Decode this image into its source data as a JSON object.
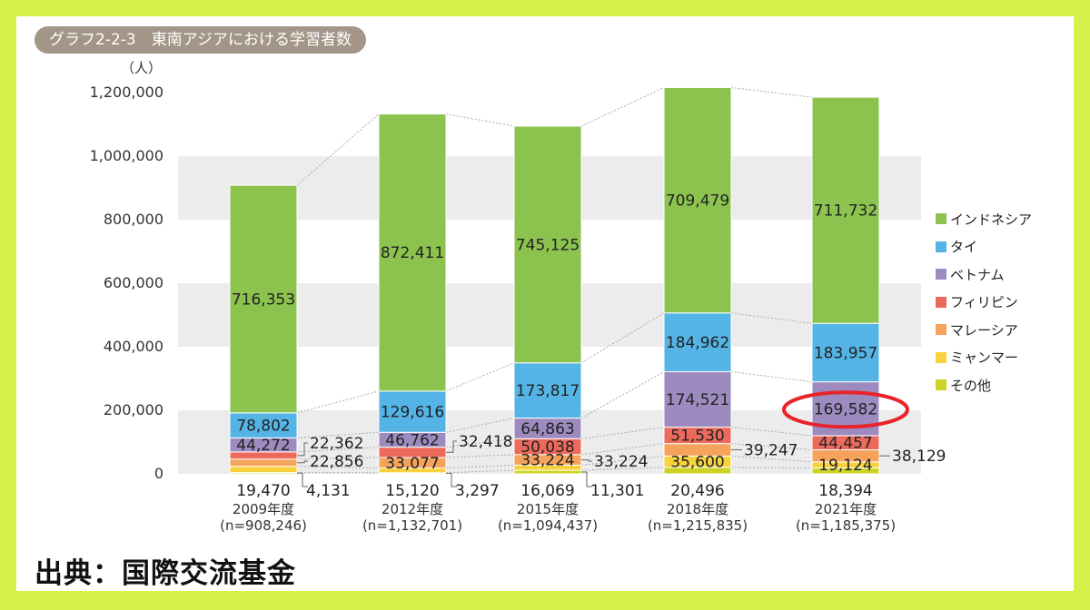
{
  "header": {
    "title": "グラフ2-2-3　東南アジアにおける学習者数"
  },
  "footer": {
    "source": "出典：国際交流基金"
  },
  "colors": {
    "background": "#d8f04a",
    "インドネシア": "#8cc34f",
    "タイ": "#54b4e6",
    "ベトナム": "#9d8bc0",
    "フィリピン": "#ec6a5c",
    "マレーシア": "#f5a35c",
    "ミャンマー": "#f8d23c",
    "その他": "#cbd424",
    "highlight": "#e8242a"
  },
  "chart_data": {
    "type": "bar",
    "stacked": true,
    "ylabel": "（人）",
    "ylim": [
      0,
      1200000
    ],
    "yticks": [
      "0",
      "200,000",
      "400,000",
      "600,000",
      "800,000",
      "1,000,000",
      "1,200,000"
    ],
    "grid": true,
    "legend_position": "right",
    "categories": [
      {
        "year": "2009年度",
        "total": "(n=908,246)"
      },
      {
        "year": "2012年度",
        "total": "(n=1,132,701)"
      },
      {
        "year": "2015年度",
        "total": "(n=1,094,437)"
      },
      {
        "year": "2018年度",
        "total": "(n=1,215,835)"
      },
      {
        "year": "2021年度",
        "total": "(n=1,185,375)"
      }
    ],
    "series": [
      {
        "name": "その他",
        "values": [
          4131,
          3297,
          11301,
          20496,
          18394
        ],
        "labels": [
          "4,131",
          "3,297",
          "11,301",
          "20,496",
          "18,394"
        ]
      },
      {
        "name": "ミャンマー",
        "values": [
          19470,
          15120,
          16069,
          35600,
          19124
        ],
        "labels": [
          "19,470",
          "15,120",
          "16,069",
          "35,600",
          "19,124"
        ]
      },
      {
        "name": "マレーシア",
        "values": [
          22856,
          33077,
          33224,
          39247,
          38129
        ],
        "labels": [
          "22,856",
          "33,077",
          "33,224",
          "39,247",
          "38,129"
        ]
      },
      {
        "name": "フィリピン",
        "values": [
          22362,
          32418,
          50038,
          51530,
          44457
        ],
        "labels": [
          "22,362",
          "32,418",
          "50,038",
          "51,530",
          "44,457"
        ]
      },
      {
        "name": "ベトナム",
        "values": [
          44272,
          46762,
          64863,
          174521,
          169582
        ],
        "labels": [
          "44,272",
          "46,762",
          "64,863",
          "174,521",
          "169,582"
        ]
      },
      {
        "name": "タイ",
        "values": [
          78802,
          129616,
          173817,
          184962,
          183957
        ],
        "labels": [
          "78,802",
          "129,616",
          "173,817",
          "184,962",
          "183,957"
        ]
      },
      {
        "name": "インドネシア",
        "values": [
          716353,
          872411,
          745125,
          709479,
          711732
        ],
        "labels": [
          "716,353",
          "872,411",
          "745,125",
          "709,479",
          "711,732"
        ]
      }
    ],
    "legend_order": [
      "インドネシア",
      "タイ",
      "ベトナム",
      "フィリピン",
      "マレーシア",
      "ミャンマー",
      "その他"
    ],
    "highlight": {
      "series": "ベトナム",
      "category": "2021年度"
    }
  }
}
